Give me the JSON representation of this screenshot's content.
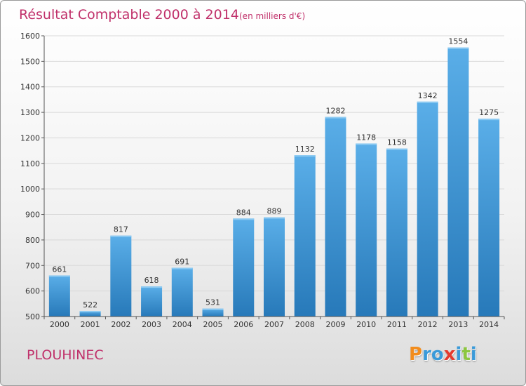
{
  "chart_data": {
    "type": "bar",
    "title": "Résultat Comptable 2000 à 2014",
    "subtitle": "(en milliers d'€)",
    "categories": [
      "2000",
      "2001",
      "2002",
      "2003",
      "2004",
      "2005",
      "2006",
      "2007",
      "2008",
      "2009",
      "2010",
      "2011",
      "2012",
      "2013",
      "2014"
    ],
    "values": [
      661,
      522,
      817,
      618,
      691,
      531,
      884,
      889,
      1132,
      1282,
      1178,
      1158,
      1342,
      1554,
      1275
    ],
    "ylim": [
      500,
      1600
    ],
    "yticks": [
      500,
      600,
      700,
      800,
      900,
      1000,
      1100,
      1200,
      1300,
      1400,
      1500,
      1600
    ],
    "xlabel": "",
    "ylabel": "",
    "grid": true,
    "colors": {
      "bar_top": "#5aaee8",
      "bar_bottom": "#2779b9",
      "title": "#c0306a"
    }
  },
  "footer": {
    "commune": "PLOUHINEC",
    "logo_letters": [
      {
        "ch": "P",
        "color": "#f28c1c"
      },
      {
        "ch": "r",
        "color": "#3a9ad9"
      },
      {
        "ch": "o",
        "color": "#3a9ad9"
      },
      {
        "ch": "x",
        "color": "#e53b2f"
      },
      {
        "ch": "i",
        "color": "#3a9ad9"
      },
      {
        "ch": "t",
        "color": "#8cc63f"
      },
      {
        "ch": "i",
        "color": "#3a9ad9"
      }
    ]
  }
}
